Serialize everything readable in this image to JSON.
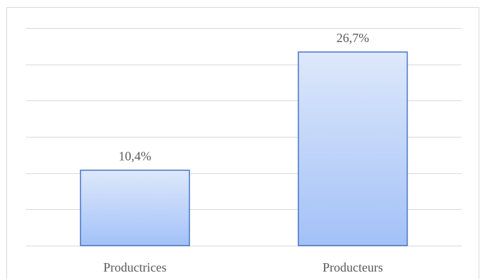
{
  "chart_data": {
    "type": "bar",
    "categories": [
      "Productrices",
      "Producteurs"
    ],
    "values": [
      10.4,
      26.7
    ],
    "data_labels": [
      "10,4%",
      "26,7%"
    ],
    "title": "",
    "xlabel": "",
    "ylabel": "",
    "ylim": [
      0,
      30
    ],
    "grid": true,
    "legend": "none",
    "colors": {
      "bar_top": "#dde8fb",
      "bar_bottom": "#a3c1f7",
      "bar_border": "#4472c4",
      "grid": "#d9d9d9",
      "text": "#595959"
    }
  }
}
